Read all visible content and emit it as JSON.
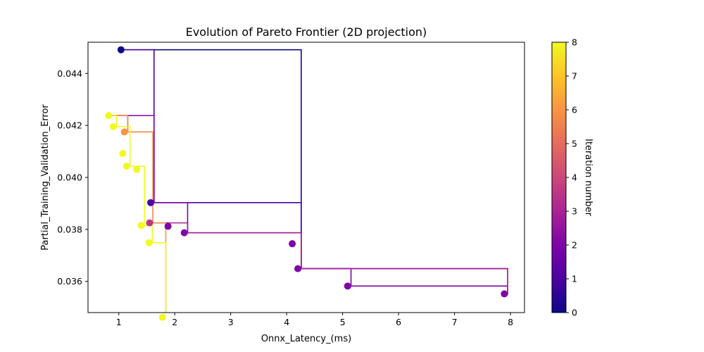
{
  "chart_data": {
    "type": "scatter",
    "title": "Evolution of Pareto Frontier (2D projection)",
    "xlabel": "Onnx_Latency_(ms)",
    "ylabel": "Partial_Training_Validation_Error",
    "xlim": [
      0.45,
      8.25
    ],
    "ylim": [
      0.0348,
      0.0452
    ],
    "xticks": [
      1,
      2,
      3,
      4,
      5,
      6,
      7,
      8
    ],
    "yticks": [
      0.036,
      0.038,
      0.04,
      0.042,
      0.044
    ],
    "xtick_labels": [
      "1",
      "2",
      "3",
      "4",
      "5",
      "6",
      "7",
      "8"
    ],
    "ytick_labels": [
      "0.036",
      "0.038",
      "0.040",
      "0.042",
      "0.044"
    ],
    "grid": false,
    "colorbar": {
      "label": "Iteration number",
      "colormap": "plasma",
      "range": [
        0,
        8
      ],
      "ticks": [
        0,
        1,
        2,
        3,
        4,
        5,
        6,
        7,
        8
      ],
      "tick_labels": [
        "0",
        "1",
        "2",
        "3",
        "4",
        "5",
        "6",
        "7",
        "8"
      ]
    },
    "frontiers": [
      {
        "iteration": 0,
        "points": [
          [
            1.04,
            0.04491
          ],
          [
            4.2,
            0.03649
          ]
        ]
      },
      {
        "iteration": 1,
        "points": [
          [
            1.04,
            0.04491
          ],
          [
            1.57,
            0.03903
          ],
          [
            4.2,
            0.03649
          ],
          [
            7.89,
            0.03552
          ]
        ]
      },
      {
        "iteration": 2,
        "points": [
          [
            0.82,
            0.04238
          ],
          [
            1.57,
            0.03903
          ],
          [
            2.17,
            0.03787
          ],
          [
            4.2,
            0.03649
          ],
          [
            5.09,
            0.03582
          ],
          [
            7.89,
            0.03552
          ]
        ]
      },
      {
        "iteration": 3,
        "points": [
          [
            0.82,
            0.04238
          ],
          [
            1.1,
            0.04175
          ],
          [
            1.55,
            0.03825
          ],
          [
            2.17,
            0.03787
          ],
          [
            4.2,
            0.03649
          ],
          [
            7.89,
            0.03552
          ]
        ]
      },
      {
        "iteration": 6,
        "points": [
          [
            0.82,
            0.04238
          ],
          [
            1.1,
            0.04175
          ],
          [
            1.55,
            0.03825
          ],
          [
            1.78,
            0.03462
          ]
        ]
      },
      {
        "iteration": 8,
        "points": [
          [
            0.82,
            0.04238
          ],
          [
            0.9,
            0.04195
          ],
          [
            1.14,
            0.04043
          ],
          [
            1.4,
            0.03815
          ],
          [
            1.54,
            0.03749
          ],
          [
            1.78,
            0.03462
          ]
        ]
      }
    ],
    "points": [
      {
        "x": 1.04,
        "y": 0.04491,
        "iteration": 0
      },
      {
        "x": 1.57,
        "y": 0.03903,
        "iteration": 1
      },
      {
        "x": 1.88,
        "y": 0.03812,
        "iteration": 2
      },
      {
        "x": 2.17,
        "y": 0.03787,
        "iteration": 2
      },
      {
        "x": 4.1,
        "y": 0.03745,
        "iteration": 2
      },
      {
        "x": 4.2,
        "y": 0.03649,
        "iteration": 2
      },
      {
        "x": 5.09,
        "y": 0.03582,
        "iteration": 2
      },
      {
        "x": 7.89,
        "y": 0.03552,
        "iteration": 2
      },
      {
        "x": 1.55,
        "y": 0.03825,
        "iteration": 3.5
      },
      {
        "x": 1.1,
        "y": 0.04175,
        "iteration": 6
      },
      {
        "x": 0.82,
        "y": 0.04238,
        "iteration": 8
      },
      {
        "x": 0.9,
        "y": 0.04195,
        "iteration": 8
      },
      {
        "x": 1.07,
        "y": 0.04092,
        "iteration": 8
      },
      {
        "x": 1.14,
        "y": 0.04043,
        "iteration": 8
      },
      {
        "x": 1.32,
        "y": 0.04031,
        "iteration": 8
      },
      {
        "x": 1.4,
        "y": 0.03815,
        "iteration": 8
      },
      {
        "x": 1.54,
        "y": 0.03749,
        "iteration": 8
      },
      {
        "x": 1.78,
        "y": 0.03462,
        "iteration": 8
      }
    ]
  }
}
